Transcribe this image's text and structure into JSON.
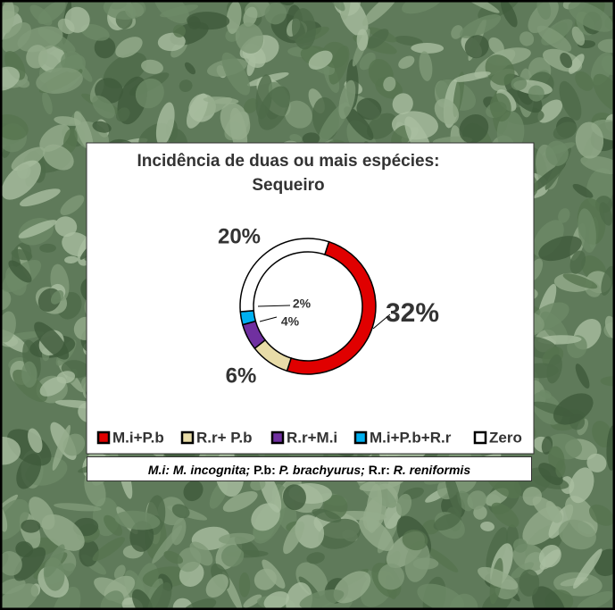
{
  "chart_data": {
    "type": "donut",
    "title": "Incidência de duas ou mais espécies:",
    "subtitle": "Sequeiro",
    "categories": [
      "M.i+P.b",
      "R.r+ P.b",
      "R.r+M.i",
      "M.i+P.b+R.r",
      "Zero"
    ],
    "values": [
      32,
      6,
      4,
      2,
      20
    ],
    "value_labels": [
      "32%",
      "6%",
      "4%",
      "2%",
      "20%"
    ],
    "colors": [
      "#e00000",
      "#e8dca8",
      "#7030a0",
      "#00b0f0",
      "#ffffff"
    ],
    "legend": "bottom",
    "footnote": [
      "M.i:",
      " M. incognita;",
      " P.b:",
      " P. brachyurus;",
      " R.r:",
      " R. reniformis"
    ]
  }
}
